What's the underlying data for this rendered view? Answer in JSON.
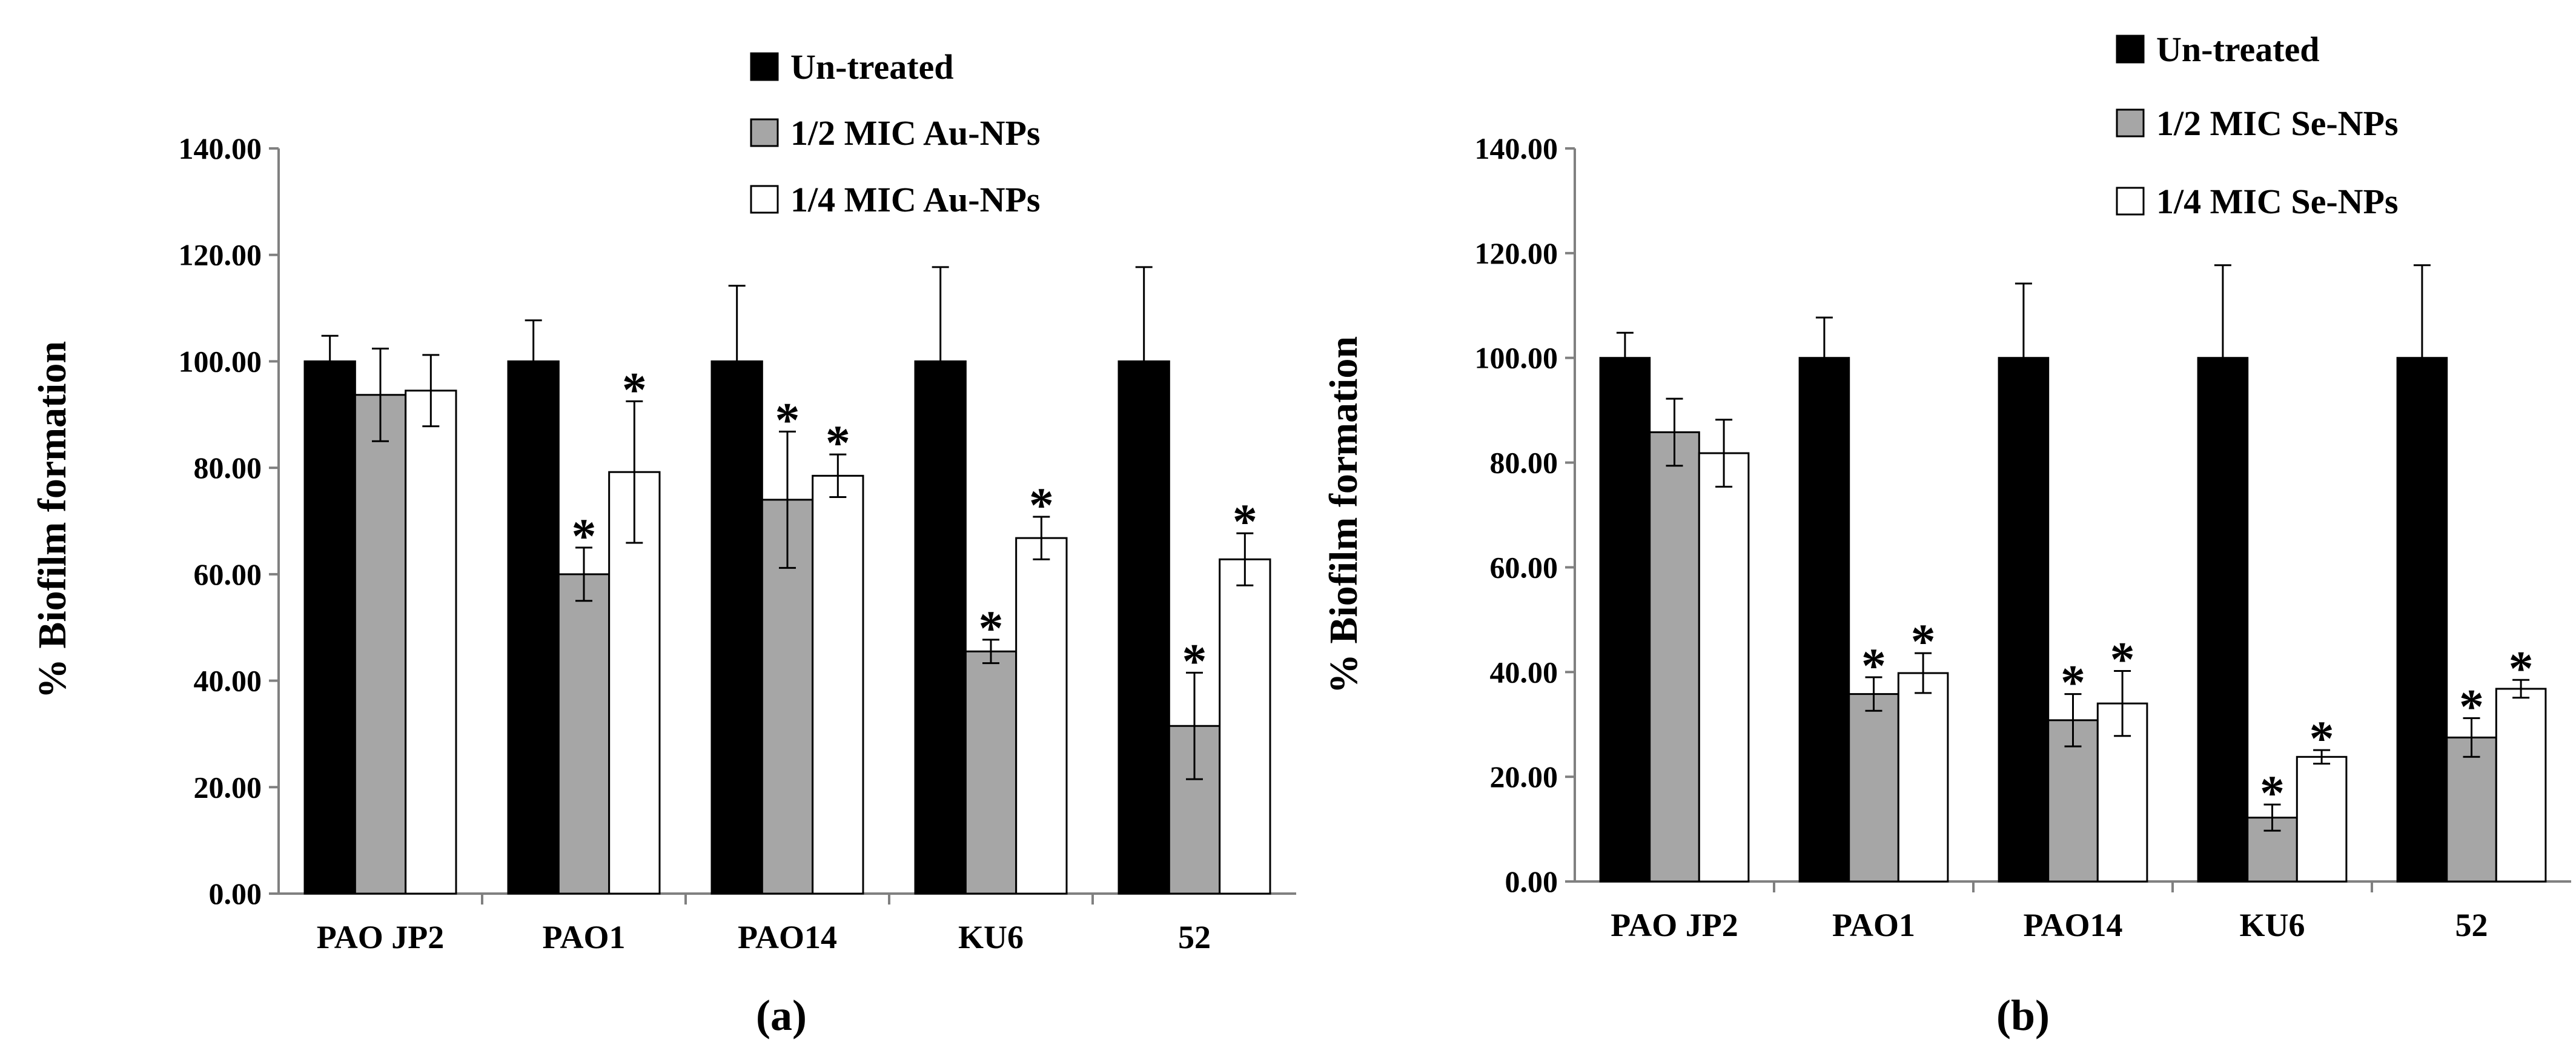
{
  "chart_data": [
    {
      "type": "bar",
      "panel_label": "(a)",
      "title": "",
      "xlabel": "",
      "ylabel": "% Biofilm formation",
      "ylim": [
        0,
        140
      ],
      "y_ticks": [
        "0.00",
        "20.00",
        "40.00",
        "60.00",
        "80.00",
        "100.00",
        "120.00",
        "140.00"
      ],
      "grid": false,
      "legend_position": "top-center",
      "categories": [
        "PAO JP2",
        "PAO1",
        "PAO14",
        "KU6",
        "52"
      ],
      "series": [
        {
          "name": "Un-treated",
          "fill": "#000000",
          "values": [
            100,
            100,
            100,
            100,
            100
          ],
          "errors": [
            4.8,
            7.7,
            14.2,
            17.7,
            17.7
          ],
          "significant": [
            false,
            false,
            false,
            false,
            false
          ]
        },
        {
          "name": "1/2 MIC Au-NPs",
          "fill": "#a6a6a6",
          "values": [
            93.7,
            60.0,
            74.0,
            45.5,
            31.5
          ],
          "errors": [
            8.7,
            5.0,
            12.8,
            2.2,
            10.0
          ],
          "significant": [
            false,
            true,
            true,
            true,
            true
          ]
        },
        {
          "name": "1/4 MIC Au-NPs",
          "fill": "#ffffff",
          "values": [
            94.5,
            79.2,
            78.5,
            66.8,
            62.8
          ],
          "errors": [
            6.7,
            13.3,
            4.0,
            4.0,
            4.9
          ],
          "significant": [
            false,
            true,
            true,
            true,
            true
          ]
        }
      ],
      "significance_marker": "*"
    },
    {
      "type": "bar",
      "panel_label": "(b)",
      "title": "",
      "xlabel": "",
      "ylabel": "% Biofilm formation",
      "ylim": [
        0,
        140
      ],
      "y_ticks": [
        "0.00",
        "20.00",
        "40.00",
        "60.00",
        "80.00",
        "100.00",
        "120.00",
        "140.00"
      ],
      "grid": false,
      "legend_position": "top-center",
      "categories": [
        "PAO JP2",
        "PAO1",
        "PAO14",
        "KU6",
        "52"
      ],
      "series": [
        {
          "name": "Un-treated",
          "fill": "#000000",
          "values": [
            100,
            100,
            100,
            100,
            100
          ],
          "errors": [
            4.8,
            7.7,
            14.2,
            17.7,
            17.7
          ],
          "significant": [
            false,
            false,
            false,
            false,
            false
          ]
        },
        {
          "name": "1/2 MIC Se-NPs",
          "fill": "#a6a6a6",
          "values": [
            85.8,
            35.8,
            30.8,
            12.2,
            27.5
          ],
          "errors": [
            6.4,
            3.2,
            5.0,
            2.5,
            3.7
          ],
          "significant": [
            false,
            true,
            true,
            true,
            true
          ]
        },
        {
          "name": "1/4 MIC Se-NPs",
          "fill": "#ffffff",
          "values": [
            81.8,
            39.8,
            34.0,
            23.8,
            36.8
          ],
          "errors": [
            6.4,
            3.8,
            6.2,
            1.3,
            1.7
          ],
          "significant": [
            false,
            true,
            true,
            true,
            true
          ]
        }
      ],
      "significance_marker": "*"
    }
  ]
}
